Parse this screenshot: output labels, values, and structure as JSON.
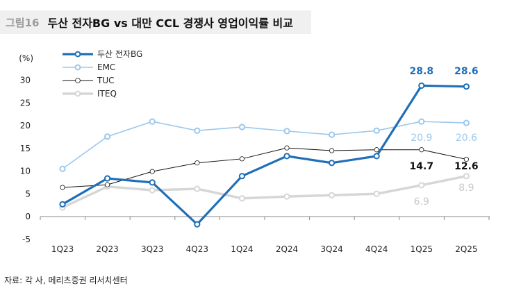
{
  "header": {
    "figure_no": "그림16",
    "title": "두산 전자BG vs 대만 CCL 경쟁사 영업이익률 비교"
  },
  "source": "자료: 각 사, 메리츠증권 리서치센터",
  "chart_data": {
    "type": "line",
    "title": "두산 전자BG vs 대만 CCL 경쟁사 영업이익률 비교",
    "ylabel": "(%)",
    "unit_label": "(%)",
    "ylim": [
      -5,
      30
    ],
    "yticks": [
      -5,
      0,
      5,
      10,
      15,
      20,
      25,
      30
    ],
    "categories": [
      "1Q23",
      "2Q23",
      "3Q23",
      "4Q23",
      "1Q24",
      "2Q24",
      "3Q24",
      "4Q24",
      "1Q25",
      "2Q25"
    ],
    "legend_position": "top-left",
    "grid": false,
    "series": [
      {
        "name": "두산 전자BG",
        "color": "#1f6fb8",
        "width": 3.2,
        "values": [
          2.7,
          8.4,
          7.5,
          -1.7,
          8.9,
          13.3,
          11.8,
          13.3,
          28.8,
          28.6
        ],
        "labels": [
          "28.8",
          "28.6"
        ]
      },
      {
        "name": "EMC",
        "color": "#9cc8ec",
        "width": 1.6,
        "values": [
          10.5,
          17.6,
          20.9,
          18.9,
          19.7,
          18.8,
          18.0,
          18.9,
          20.9,
          20.6
        ],
        "labels": [
          "20.9",
          "20.6"
        ]
      },
      {
        "name": "TUC",
        "color": "#111111",
        "width": 1,
        "values": [
          6.4,
          7.0,
          9.9,
          11.8,
          12.7,
          15.1,
          14.5,
          14.7,
          14.7,
          12.6
        ],
        "labels": [
          "14.7",
          "12.6"
        ]
      },
      {
        "name": "ITEQ",
        "color": "#d6d6d6",
        "width": 3.5,
        "values": [
          2.0,
          6.6,
          5.8,
          6.1,
          4.0,
          4.4,
          4.7,
          5.0,
          6.9,
          8.9
        ],
        "labels": [
          "6.9",
          "8.9"
        ]
      }
    ]
  }
}
